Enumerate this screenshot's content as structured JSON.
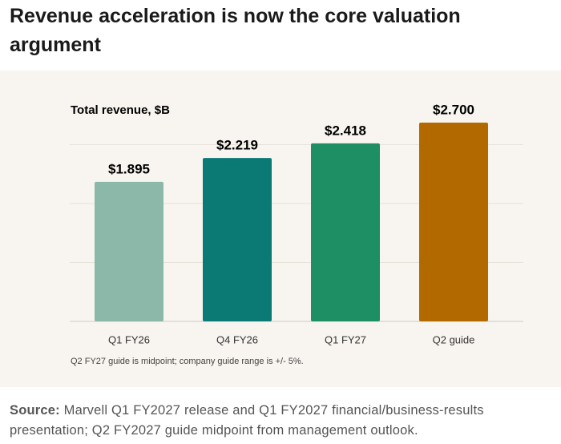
{
  "heading": "Revenue acceleration is now the core valuation argument",
  "chart_data": {
    "type": "bar",
    "title": "Total revenue, $B",
    "categories": [
      "Q1 FY26",
      "Q4 FY26",
      "Q1 FY27",
      "Q2 guide"
    ],
    "values": [
      1.895,
      2.219,
      2.418,
      2.7
    ],
    "value_labels": [
      "$1.895",
      "$2.219",
      "$2.418",
      "$2.700"
    ],
    "colors": [
      "#8bb8a9",
      "#0b7a74",
      "#1e8e65",
      "#b26900"
    ],
    "ylim": [
      0,
      3.2
    ],
    "yticks": [
      0,
      0.8,
      1.6,
      2.4
    ],
    "grid": true,
    "note": "Q2 FY27 guide is midpoint; company guide range is +/- 5%."
  },
  "source": {
    "label": "Source:",
    "text": "Marvell Q1 FY2027 release and Q1 FY2027 financial/business-results presentation; Q2 FY2027 guide midpoint from management outlook."
  }
}
